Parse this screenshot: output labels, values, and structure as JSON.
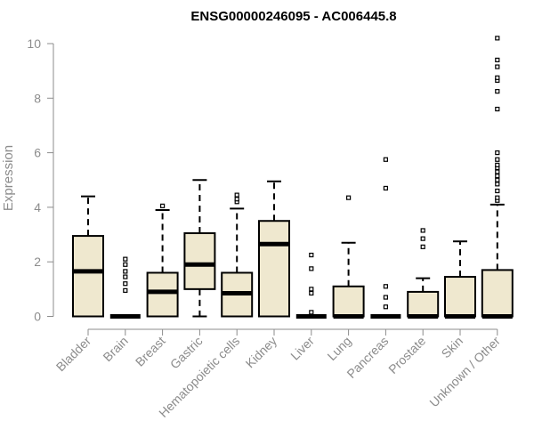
{
  "chart_data": {
    "type": "boxplot",
    "title": "ENSG00000246095 - AC006445.8",
    "ylabel": "Expression",
    "xlabel": "",
    "ylim": [
      0,
      10.2
    ],
    "yticks": [
      0,
      2,
      4,
      6,
      8,
      10
    ],
    "grid": false,
    "colors": {
      "box_fill": "#efe8cf",
      "box_stroke": "#000000",
      "axis": "#8c8c8c",
      "title": "#000000"
    },
    "categories": [
      "Bladder",
      "Brain",
      "Breast",
      "Gastric",
      "Hematopoietic cells",
      "Kidney",
      "Liver",
      "Lung",
      "Pancreas",
      "Prostate",
      "Skin",
      "Unknown / Other"
    ],
    "boxes": [
      {
        "category": "Bladder",
        "whisker_low": 0,
        "q1": 0,
        "median": 1.65,
        "q3": 2.95,
        "whisker_high": 4.4,
        "outliers": []
      },
      {
        "category": "Brain",
        "whisker_low": 0,
        "q1": 0,
        "median": 0,
        "q3": 0,
        "whisker_high": 0,
        "outliers": [
          0.95,
          1.2,
          1.45,
          1.65,
          1.9,
          2.1
        ]
      },
      {
        "category": "Breast",
        "whisker_low": 0,
        "q1": 0,
        "median": 0.9,
        "q3": 1.6,
        "whisker_high": 3.9,
        "outliers": [
          4.05
        ]
      },
      {
        "category": "Gastric",
        "whisker_low": 0,
        "q1": 1.0,
        "median": 1.9,
        "q3": 3.05,
        "whisker_high": 5.0,
        "outliers": []
      },
      {
        "category": "Hematopoietic cells",
        "whisker_low": 0,
        "q1": 0,
        "median": 0.85,
        "q3": 1.6,
        "whisker_high": 3.95,
        "outliers": [
          4.2,
          4.3,
          4.45
        ]
      },
      {
        "category": "Kidney",
        "whisker_low": 0,
        "q1": 0,
        "median": 2.65,
        "q3": 3.5,
        "whisker_high": 4.95,
        "outliers": []
      },
      {
        "category": "Liver",
        "whisker_low": 0,
        "q1": 0,
        "median": 0,
        "q3": 0,
        "whisker_high": 0,
        "outliers": [
          0.15,
          0.85,
          1.0,
          1.75,
          2.25
        ]
      },
      {
        "category": "Lung",
        "whisker_low": 0,
        "q1": 0,
        "median": 0,
        "q3": 1.1,
        "whisker_high": 2.7,
        "outliers": [
          4.35
        ]
      },
      {
        "category": "Pancreas",
        "whisker_low": 0,
        "q1": 0,
        "median": 0,
        "q3": 0,
        "whisker_high": 0,
        "outliers": [
          0.35,
          0.7,
          1.1,
          4.7,
          5.75
        ]
      },
      {
        "category": "Prostate",
        "whisker_low": 0,
        "q1": 0,
        "median": 0,
        "q3": 0.9,
        "whisker_high": 1.4,
        "outliers": [
          2.55,
          2.85,
          3.15
        ]
      },
      {
        "category": "Skin",
        "whisker_low": 0,
        "q1": 0,
        "median": 0,
        "q3": 1.45,
        "whisker_high": 2.75,
        "outliers": []
      },
      {
        "category": "Unknown / Other",
        "whisker_low": 0,
        "q1": 0,
        "median": 0,
        "q3": 1.7,
        "whisker_high": 4.1,
        "outliers": [
          4.25,
          4.35,
          4.6,
          4.85,
          5.0,
          5.15,
          5.3,
          5.45,
          5.55,
          5.75,
          6.0,
          7.6,
          8.25,
          8.65,
          8.75,
          9.15,
          9.4,
          10.2
        ]
      }
    ]
  }
}
